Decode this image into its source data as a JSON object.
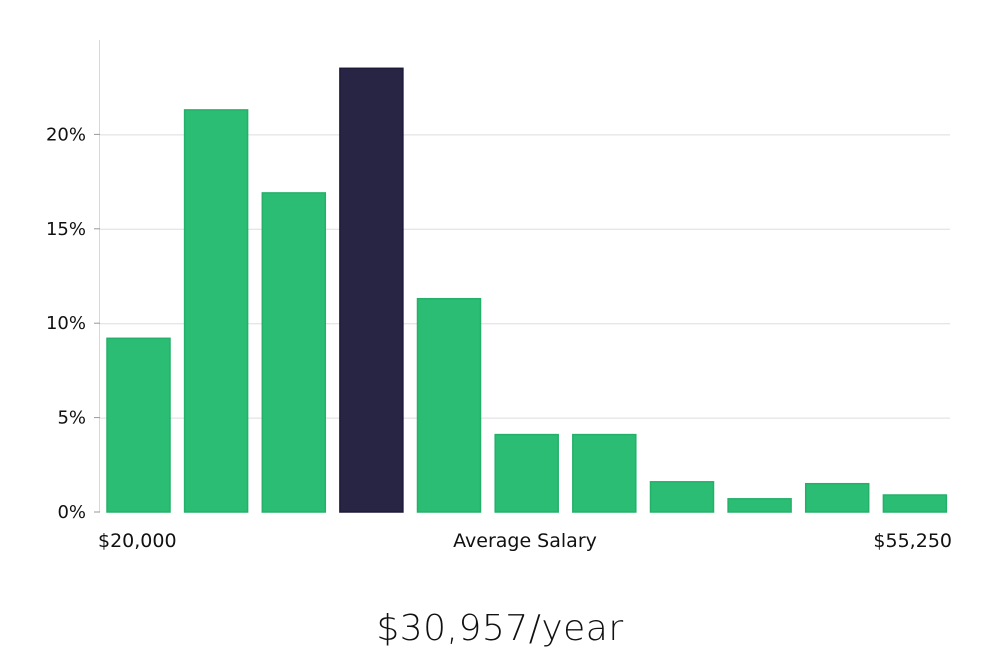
{
  "chart_data": {
    "type": "bar",
    "title": "",
    "xlabel": "Average Salary",
    "ylabel": "",
    "x_min_label": "$20,000",
    "x_max_label": "$55,250",
    "ylim": [
      0,
      25
    ],
    "ytick_values": [
      0,
      5,
      10,
      15,
      20
    ],
    "ytick_labels": [
      "0%",
      "5%",
      "10%",
      "15%",
      "20%"
    ],
    "grid": true,
    "values": [
      9.2,
      21.3,
      16.9,
      23.5,
      11.3,
      4.1,
      4.1,
      1.6,
      0.7,
      1.5,
      0.9
    ],
    "highlight_index": 3,
    "bar_color": "#2bbd73",
    "highlight_color": "#282544"
  },
  "summary": {
    "salary": "$30,957/year"
  }
}
